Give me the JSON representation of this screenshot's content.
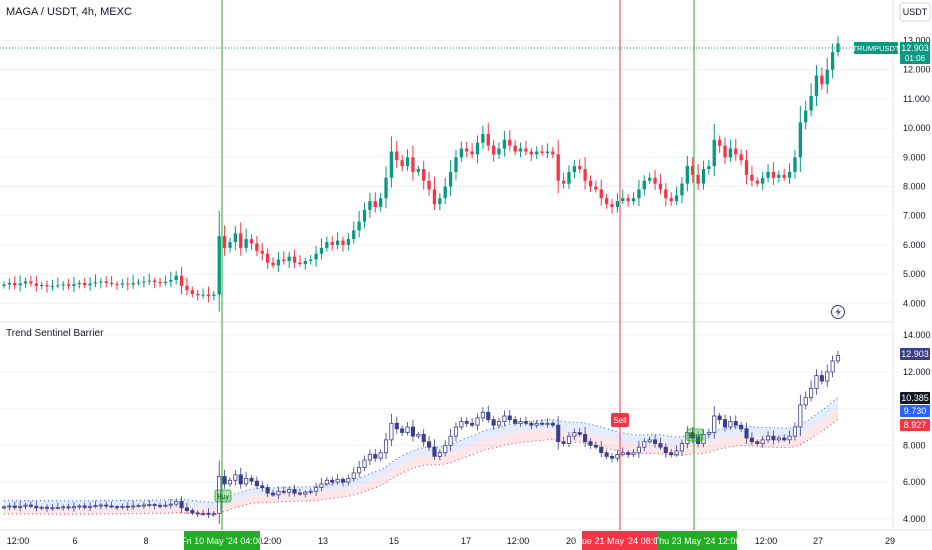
{
  "colors": {
    "up": "#089981",
    "down": "#f23645",
    "buy_line": "#22ab24",
    "sell_line": "#f23645",
    "volatility_bull": "#2962ff",
    "volatility_bear": "#f23645",
    "indicator_candle": "#3c3e8c",
    "price_tag": "#089981",
    "upper_band_label": "#2962ff",
    "lower_band_label": "#f23645",
    "last_price_label": "#3c3e8c",
    "grid": "#f0f3fa",
    "text": "#131722"
  },
  "header": {
    "symbol": "MAGA / USDT, 4h, MEXC",
    "quote_button": "USDT"
  },
  "price_pane": {
    "last_price_ticker": "TRUMPUSDT",
    "last_price": "12.903",
    "countdown": "01:06"
  },
  "indicator_pane": {
    "name": "Trend Sentinel Barrier",
    "last_value": "12.903",
    "mid_value": "10.385",
    "upper_value": "9.730",
    "lower_value": "8.927",
    "sell_label": "Sell",
    "buy_labels": [
      "Buy",
      "Buy"
    ]
  },
  "icons": {
    "lightning": "lightning-bolt-icon"
  },
  "chart_data": [
    {
      "type": "candlestick",
      "title": "MAGA / USDT, 4h, MEXC",
      "ylim": [
        3.5,
        13.7
      ],
      "y_ticks": [
        "13.000",
        "12.000",
        "11.000",
        "10.000",
        "9.000",
        "8.000",
        "7.000",
        "6.000",
        "5.000",
        "4.000"
      ],
      "x_ticks": [
        "12:00",
        "6",
        "12:00",
        "8",
        "Fri 10 May '24",
        "04:00",
        "12:00",
        "13",
        "15",
        "17",
        "12:00",
        "20",
        "Tue 21 May '24",
        "08:00",
        "Thu 23 May '24",
        "12:00",
        "12:00",
        "27",
        "29"
      ],
      "candles_close": [
        4.65,
        4.7,
        4.62,
        4.68,
        4.75,
        4.68,
        4.6,
        4.63,
        4.58,
        4.6,
        4.62,
        4.65,
        4.6,
        4.66,
        4.7,
        4.62,
        4.68,
        4.72,
        4.75,
        4.7,
        4.66,
        4.64,
        4.68,
        4.65,
        4.7,
        4.72,
        4.75,
        4.78,
        4.73,
        4.7,
        4.74,
        4.8,
        4.95,
        4.6,
        4.45,
        4.32,
        4.28,
        4.3,
        4.25,
        4.3,
        6.3,
        5.9,
        6.1,
        6.4,
        5.9,
        6.2,
        6.05,
        5.8,
        5.7,
        5.4,
        5.3,
        5.5,
        5.45,
        5.6,
        5.4,
        5.35,
        5.45,
        5.5,
        5.7,
        5.9,
        6.1,
        6.0,
        6.15,
        6.0,
        6.2,
        6.5,
        6.8,
        7.2,
        7.5,
        7.3,
        7.6,
        8.3,
        9.2,
        8.9,
        8.7,
        9.0,
        8.5,
        8.6,
        8.2,
        7.9,
        7.4,
        7.6,
        8.0,
        8.5,
        9.0,
        9.3,
        9.2,
        9.1,
        9.5,
        9.8,
        9.4,
        9.1,
        9.3,
        9.6,
        9.4,
        9.2,
        9.3,
        9.2,
        9.1,
        9.2,
        9.15,
        9.2,
        9.1,
        8.2,
        8.1,
        8.5,
        8.7,
        8.6,
        8.2,
        8.0,
        7.9,
        7.6,
        7.4,
        7.3,
        7.5,
        7.6,
        7.5,
        7.6,
        7.9,
        8.2,
        8.3,
        8.1,
        7.9,
        7.6,
        7.5,
        7.7,
        8.1,
        8.7,
        8.4,
        8.1,
        8.6,
        8.7,
        9.6,
        9.4,
        9.0,
        9.3,
        9.1,
        8.9,
        8.4,
        8.2,
        8.1,
        8.3,
        8.5,
        8.3,
        8.4,
        8.3,
        8.5,
        9.0,
        10.2,
        10.6,
        11.1,
        11.8,
        11.5,
        12.0,
        12.6,
        12.9
      ]
    },
    {
      "type": "candlestick",
      "title": "Trend Sentinel Barrier",
      "ylim": [
        3.5,
        14.5
      ],
      "y_ticks": [
        "14.000",
        "12.000",
        "10.000",
        "8.000",
        "6.000",
        "4.000"
      ],
      "signals": [
        {
          "label": "Buy",
          "x_label": "Fri 10 May '24 04:00"
        },
        {
          "label": "Sell",
          "x_label": "Tue 21 May '24 08:00"
        },
        {
          "label": "Buy",
          "x_label": "Thu 23 May '24 12:00"
        }
      ]
    }
  ]
}
